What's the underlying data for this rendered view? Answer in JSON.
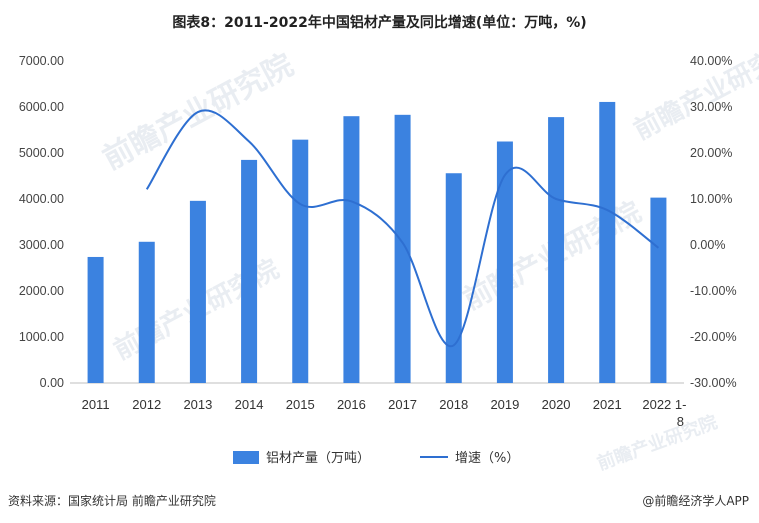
{
  "title": "图表8：2011-2022年中国铝材产量及同比增速(单位：万吨，%)",
  "chart_data": {
    "type": "bar",
    "title": "图表8：2011-2022年中国铝材产量及同比增速(单位：万吨，%)",
    "categories": [
      "2011",
      "2012",
      "2013",
      "2014",
      "2015",
      "2016",
      "2017",
      "2018",
      "2019",
      "2020",
      "2021",
      "2022 1-8"
    ],
    "series": [
      {
        "name": "铝材产量（万吨）",
        "type": "bar",
        "axis": "left",
        "color": "#3b82e0",
        "values": [
          2740,
          3070,
          3960,
          4850,
          5290,
          5800,
          5830,
          4560,
          5250,
          5780,
          6110,
          4030
        ]
      },
      {
        "name": "增速（%）",
        "type": "line",
        "axis": "right",
        "color": "#2e6fd1",
        "values": [
          null,
          12.1,
          28.9,
          22.5,
          8.9,
          9.5,
          0.5,
          -21.8,
          15.2,
          10.0,
          7.6,
          -0.6
        ]
      }
    ],
    "y_left": {
      "min": 0,
      "max": 7000,
      "step": 1000,
      "tick_labels": [
        "0.00",
        "1000.00",
        "2000.00",
        "3000.00",
        "4000.00",
        "5000.00",
        "6000.00",
        "7000.00"
      ]
    },
    "y_right": {
      "min": -30,
      "max": 40,
      "step": 10,
      "tick_labels": [
        "-30.00%",
        "-20.00%",
        "-10.00%",
        "0.00%",
        "10.00%",
        "20.00%",
        "30.00%",
        "40.00%"
      ]
    },
    "legend": [
      "铝材产量（万吨）",
      "增速（%）"
    ],
    "legend_position": "bottom"
  },
  "footer": {
    "source": "资料来源：国家统计局 前瞻产业研究院",
    "brand": "@前瞻经济学人APP"
  },
  "watermark": "前瞻产业研究院"
}
